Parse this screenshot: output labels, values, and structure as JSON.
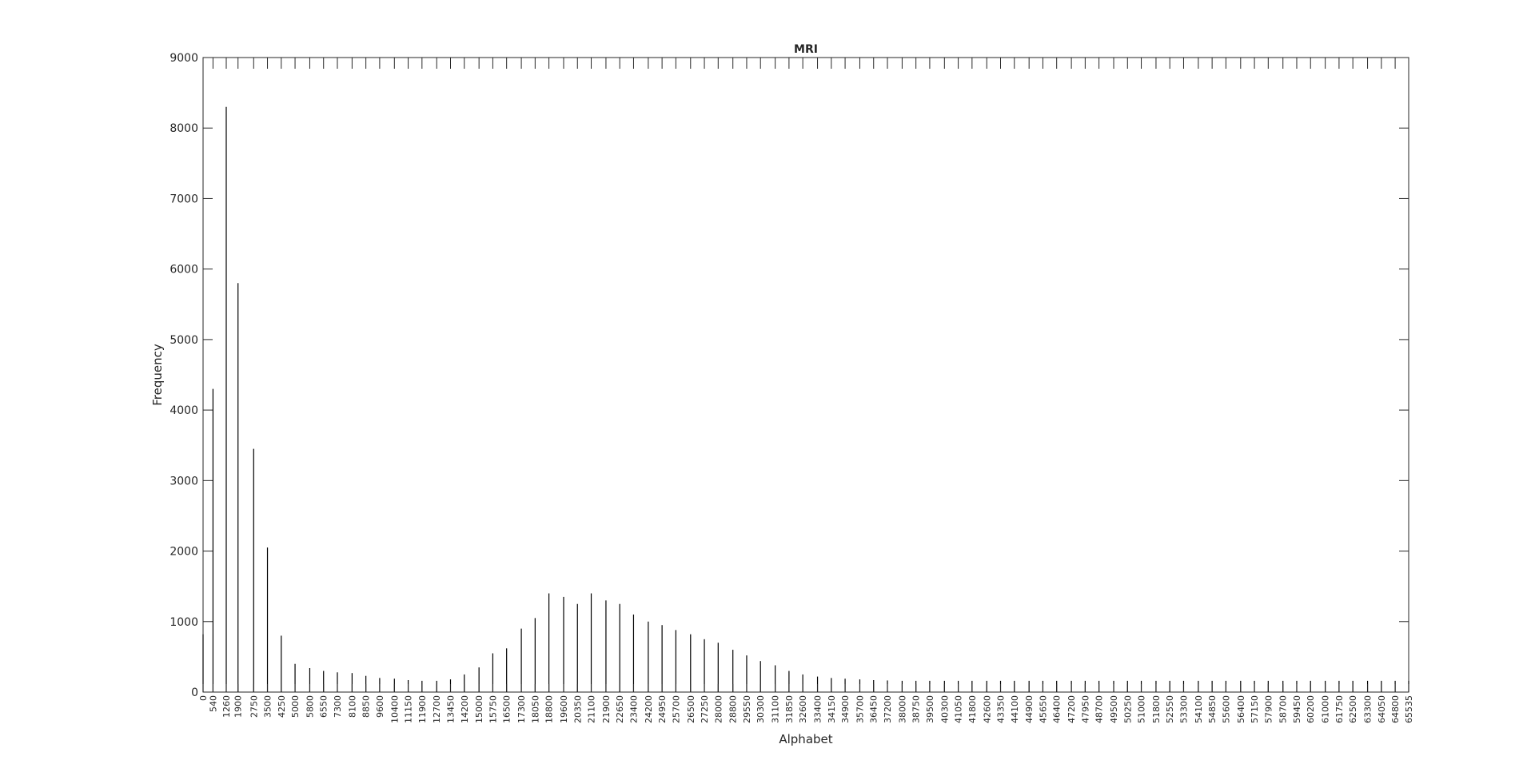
{
  "chart_data": {
    "type": "bar",
    "title": "MRI",
    "xlabel": "Alphabet",
    "ylabel": "Frequency",
    "ylim": [
      0,
      9000
    ],
    "yticks": [
      0,
      1000,
      2000,
      3000,
      4000,
      5000,
      6000,
      7000,
      8000,
      9000
    ],
    "xlim": [
      0,
      65535
    ],
    "grid": false,
    "colors": {
      "bars": "#000000",
      "axes": "#262626",
      "background": "#ffffff"
    },
    "x": [
      0,
      540,
      1260,
      1900,
      2750,
      3500,
      4250,
      5000,
      5800,
      6550,
      7300,
      8100,
      8850,
      9600,
      10400,
      11150,
      11900,
      12700,
      13450,
      14200,
      15000,
      15750,
      16500,
      17300,
      18050,
      18800,
      19600,
      20350,
      21100,
      21900,
      22650,
      23400,
      24200,
      24950,
      25700,
      26500,
      27250,
      28000,
      28800,
      29550,
      30300,
      31100,
      31850,
      32600,
      33400,
      34150,
      34900,
      35700,
      36450,
      37200,
      38000,
      38750,
      39500,
      40300,
      41050,
      41800,
      42600,
      43350,
      44100,
      44900,
      45650,
      46400,
      47200,
      47950,
      48700,
      49500,
      50250,
      51000,
      51800,
      52550,
      53300,
      54100,
      54850,
      55600,
      56400,
      57150,
      57900,
      58700,
      59450,
      60200,
      61000,
      61750,
      62500,
      63300,
      64050,
      64800,
      65535
    ],
    "values": [
      820,
      4300,
      8300,
      5800,
      3450,
      2050,
      800,
      400,
      340,
      300,
      280,
      270,
      230,
      200,
      190,
      170,
      160,
      160,
      180,
      250,
      350,
      550,
      620,
      900,
      1050,
      1400,
      1350,
      1250,
      1400,
      1300,
      1250,
      1100,
      1000,
      950,
      880,
      820,
      750,
      700,
      600,
      520,
      440,
      380,
      300,
      250,
      220,
      200,
      190,
      180,
      170,
      165,
      160,
      160,
      160,
      160,
      160,
      160,
      160,
      160,
      160,
      160,
      160,
      160,
      160,
      160,
      160,
      160,
      160,
      160,
      160,
      160,
      160,
      160,
      160,
      160,
      160,
      160,
      160,
      160,
      160,
      160,
      160,
      160,
      160,
      160,
      160,
      160,
      160
    ],
    "xtick_labels": [
      "0",
      "540",
      "1260",
      "1900",
      "2750",
      "3500",
      "4250",
      "5000",
      "5800",
      "6550",
      "7300",
      "8100",
      "8850",
      "9600",
      "10400",
      "11150",
      "11900",
      "12700",
      "13450",
      "14200",
      "15000",
      "15750",
      "16500",
      "17300",
      "18050",
      "18800",
      "19600",
      "20350",
      "21100",
      "21900",
      "22650",
      "23400",
      "24200",
      "24950",
      "25700",
      "26500",
      "27250",
      "28000",
      "28800",
      "29550",
      "30300",
      "31100",
      "31850",
      "32600",
      "33400",
      "34150",
      "34900",
      "35700",
      "36450",
      "37200",
      "38000",
      "38750",
      "39500",
      "40300",
      "41050",
      "41800",
      "42600",
      "43350",
      "44100",
      "44900",
      "45650",
      "46400",
      "47200",
      "47950",
      "48700",
      "49500",
      "50250",
      "51000",
      "51800",
      "52550",
      "53300",
      "54100",
      "54850",
      "55600",
      "56400",
      "57150",
      "57900",
      "58700",
      "59450",
      "60200",
      "61000",
      "61750",
      "62500",
      "63300",
      "64050",
      "64800",
      "65535"
    ]
  }
}
